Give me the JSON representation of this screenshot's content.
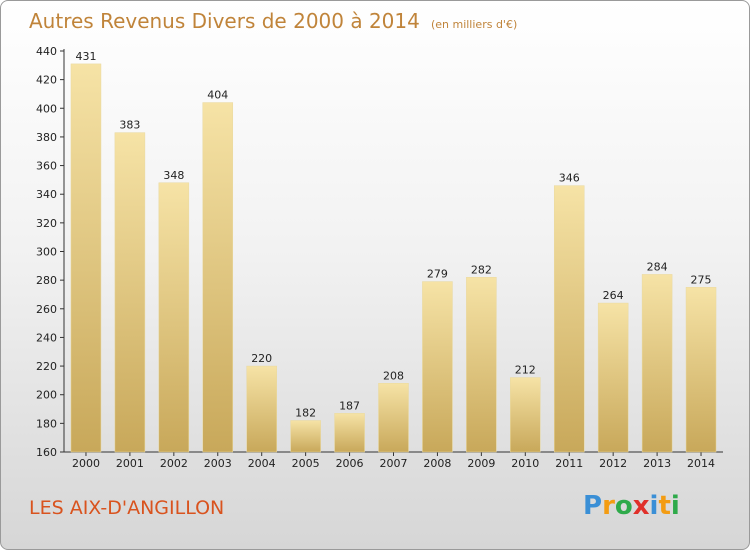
{
  "title": "Autres Revenus Divers de 2000 à 2014",
  "unit": "(en milliers d'€)",
  "place": "LES AIX-D'ANGILLON",
  "logo": {
    "letters": [
      "P",
      "r",
      "o",
      "x",
      "i",
      "t",
      "i"
    ],
    "colors": [
      "#3a8fd6",
      "#f39c12",
      "#2eaa4a",
      "#e0302a",
      "#3a8fd6",
      "#f39c12",
      "#2eaa4a"
    ]
  },
  "colors": {
    "bar_light": "#f6e3a6",
    "bar_dark": "#c8a85a",
    "title": "#c0843a",
    "place": "#d9531e"
  },
  "chart_data": {
    "type": "bar",
    "title": "Autres Revenus Divers de 2000 à 2014",
    "subtitle": "(en milliers d'€)",
    "categories": [
      "2000",
      "2001",
      "2002",
      "2003",
      "2004",
      "2005",
      "2006",
      "2007",
      "2008",
      "2009",
      "2010",
      "2011",
      "2012",
      "2013",
      "2014"
    ],
    "values": [
      431,
      383,
      348,
      404,
      220,
      182,
      187,
      208,
      279,
      282,
      212,
      346,
      264,
      284,
      275
    ],
    "ylim": [
      160,
      440
    ],
    "yticks": [
      160,
      180,
      200,
      220,
      240,
      260,
      280,
      300,
      320,
      340,
      360,
      380,
      400,
      420,
      440
    ],
    "grid": false,
    "show_value_labels": true
  }
}
